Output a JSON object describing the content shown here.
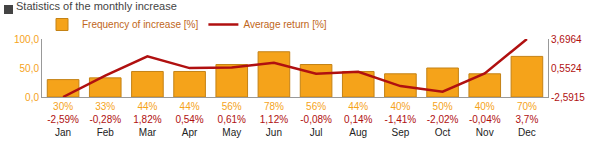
{
  "chart_data": {
    "type": "bar",
    "title": "Statistics of the monthly increase",
    "categories": [
      "Jan",
      "Feb",
      "Mar",
      "Apr",
      "May",
      "Jun",
      "Jul",
      "Aug",
      "Sep",
      "Oct",
      "Nov",
      "Dec"
    ],
    "series": [
      {
        "name": "Frequency of increase [%]",
        "type": "bar",
        "color": "#f5a31a",
        "values": [
          30,
          33,
          44,
          44,
          56,
          78,
          56,
          44,
          40,
          50,
          40,
          70
        ],
        "value_labels": [
          "30%",
          "33%",
          "44%",
          "44%",
          "56%",
          "78%",
          "56%",
          "44%",
          "40%",
          "50%",
          "40%",
          "70%"
        ]
      },
      {
        "name": "Average return [%]",
        "type": "line",
        "color": "#b01010",
        "axis": "y2",
        "values": [
          -2.5915,
          -0.28,
          1.82,
          0.54,
          0.61,
          1.12,
          -0.08,
          0.14,
          -1.41,
          -2.02,
          -0.04,
          3.6964
        ],
        "value_labels": [
          "-2,59%",
          "-0,28%",
          "1,82%",
          "0,54%",
          "0,61%",
          "1,12%",
          "-0,08%",
          "0,14%",
          "-1,41%",
          "-2,02%",
          "-0,04%",
          "3,7%"
        ]
      }
    ],
    "ylim": [
      0,
      100
    ],
    "yticks": [
      {
        "value": 0,
        "label": "0,0"
      },
      {
        "value": 50,
        "label": "50,0"
      },
      {
        "value": 100,
        "label": "100,0"
      }
    ],
    "y2lim": [
      -2.5915,
      3.6964
    ],
    "y2ticks": [
      {
        "value": -2.5915,
        "label": "-2,5915"
      },
      {
        "value": 0.5524,
        "label": "0,5524"
      },
      {
        "value": 3.6964,
        "label": "3,6964"
      }
    ],
    "data_labels": true,
    "grid": false,
    "legend": "top left"
  }
}
